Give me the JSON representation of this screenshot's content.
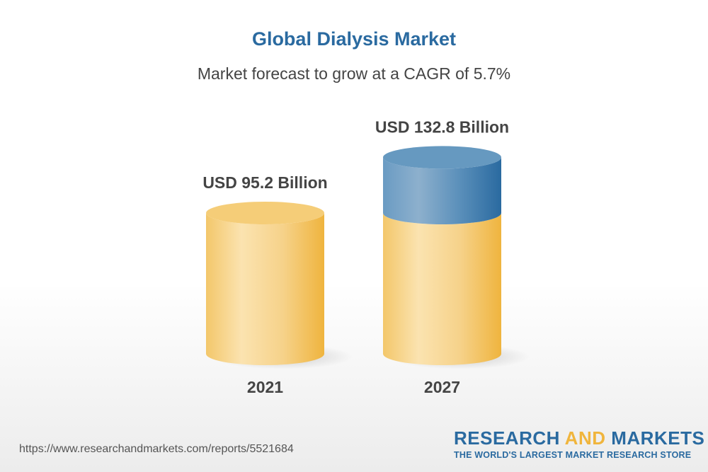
{
  "chart_data": {
    "type": "bar",
    "title": "Global Dialysis Market",
    "subtitle": "Market forecast to grow at a CAGR of 5.7%",
    "categories": [
      "2021",
      "2027"
    ],
    "values": [
      95.2,
      132.8
    ],
    "data_labels": [
      "USD 95.2 Billion",
      "USD 132.8 Billion"
    ],
    "unit": "USD Billion",
    "style": "3d-cylinder",
    "colors": {
      "base": "#f2c462",
      "growth": "#4f86b4",
      "title": "#2a6aa0"
    },
    "grid": false
  },
  "footer": {
    "url": "https://www.researchandmarkets.com/reports/5521684",
    "logo_word1": "RESEARCH ",
    "logo_word2": "AND",
    "logo_word3": " MARKETS",
    "logo_tagline": "THE WORLD'S LARGEST MARKET RESEARCH STORE"
  }
}
